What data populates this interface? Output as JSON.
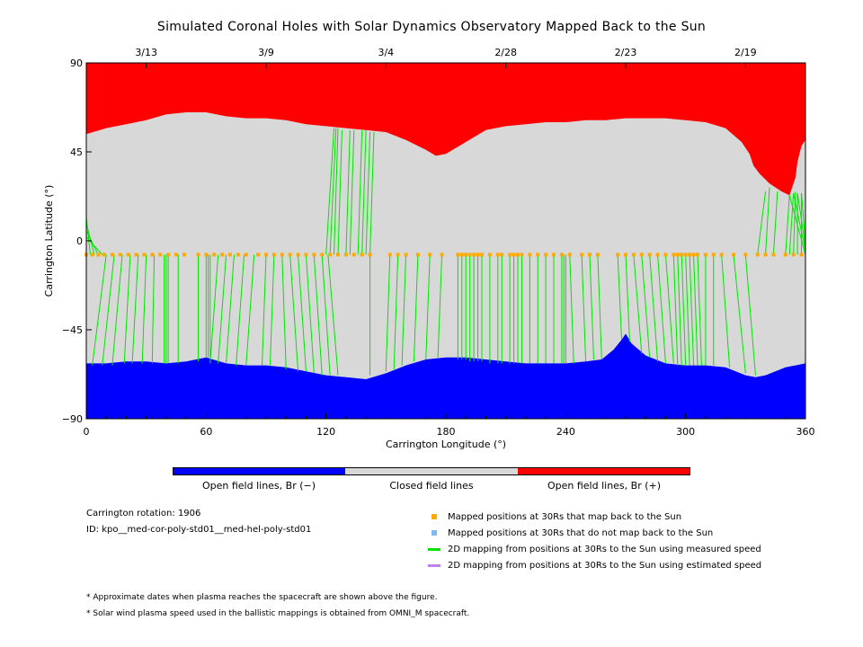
{
  "title": "Simulated Coronal Holes with Solar Dynamics Observatory Mapped Back to the Sun",
  "chart_data": {
    "type": "map",
    "xlabel": "Carrington Longitude (°)",
    "ylabel": "Carrington Latitude (°)",
    "xlim": [
      0,
      360
    ],
    "ylim": [
      -90,
      90
    ],
    "x_ticks": [
      "0",
      "60",
      "120",
      "180",
      "240",
      "300",
      "360"
    ],
    "y_ticks": [
      "90",
      "45",
      "0",
      "−45",
      "−90"
    ],
    "top_dates": [
      {
        "label": "3/13",
        "lon": 30
      },
      {
        "label": "3/9",
        "lon": 90
      },
      {
        "label": "3/4",
        "lon": 150
      },
      {
        "label": "2/28",
        "lon": 210
      },
      {
        "label": "2/23",
        "lon": 270
      },
      {
        "label": "2/19",
        "lon": 330
      }
    ],
    "north_boundary": [
      [
        0,
        54
      ],
      [
        10,
        57
      ],
      [
        20,
        59
      ],
      [
        30,
        61
      ],
      [
        40,
        64
      ],
      [
        50,
        65
      ],
      [
        60,
        65
      ],
      [
        70,
        63
      ],
      [
        80,
        62
      ],
      [
        90,
        62
      ],
      [
        100,
        61
      ],
      [
        110,
        59
      ],
      [
        120,
        58
      ],
      [
        130,
        57
      ],
      [
        140,
        56
      ],
      [
        150,
        55
      ],
      [
        160,
        51
      ],
      [
        170,
        46
      ],
      [
        175,
        43
      ],
      [
        180,
        44
      ],
      [
        190,
        50
      ],
      [
        200,
        56
      ],
      [
        210,
        58
      ],
      [
        220,
        59
      ],
      [
        230,
        60
      ],
      [
        240,
        60
      ],
      [
        250,
        61
      ],
      [
        260,
        61
      ],
      [
        270,
        62
      ],
      [
        280,
        62
      ],
      [
        290,
        62
      ],
      [
        300,
        61
      ],
      [
        310,
        60
      ],
      [
        320,
        57
      ],
      [
        328,
        50
      ],
      [
        332,
        44
      ],
      [
        334,
        38
      ],
      [
        337,
        34
      ],
      [
        342,
        29
      ],
      [
        348,
        25
      ],
      [
        352,
        23
      ],
      [
        355,
        32
      ],
      [
        356,
        40
      ],
      [
        358,
        48
      ],
      [
        360,
        51
      ]
    ],
    "south_boundary": [
      [
        0,
        -62
      ],
      [
        10,
        -62
      ],
      [
        20,
        -61
      ],
      [
        30,
        -61
      ],
      [
        40,
        -62
      ],
      [
        50,
        -61
      ],
      [
        55,
        -60
      ],
      [
        60,
        -59
      ],
      [
        70,
        -62
      ],
      [
        80,
        -63
      ],
      [
        90,
        -63
      ],
      [
        100,
        -64
      ],
      [
        110,
        -66
      ],
      [
        120,
        -68
      ],
      [
        130,
        -69
      ],
      [
        140,
        -70
      ],
      [
        150,
        -67
      ],
      [
        160,
        -63
      ],
      [
        170,
        -60
      ],
      [
        180,
        -59
      ],
      [
        190,
        -59
      ],
      [
        200,
        -60
      ],
      [
        210,
        -61
      ],
      [
        220,
        -62
      ],
      [
        230,
        -62
      ],
      [
        240,
        -62
      ],
      [
        250,
        -61
      ],
      [
        258,
        -60
      ],
      [
        264,
        -55
      ],
      [
        268,
        -50
      ],
      [
        270,
        -47
      ],
      [
        273,
        -52
      ],
      [
        280,
        -58
      ],
      [
        290,
        -62
      ],
      [
        300,
        -63
      ],
      [
        310,
        -63
      ],
      [
        320,
        -64
      ],
      [
        330,
        -68
      ],
      [
        335,
        -69
      ],
      [
        340,
        -68
      ],
      [
        350,
        -64
      ],
      [
        360,
        -62
      ]
    ],
    "mapped_latitude": -7,
    "mapped_points_lon": [
      0,
      3,
      6,
      9,
      13,
      17,
      21,
      25,
      29,
      33,
      37,
      41,
      45,
      49,
      56,
      60,
      64,
      68,
      72,
      76,
      80,
      86,
      90,
      94,
      98,
      102,
      106,
      110,
      114,
      118,
      122,
      126,
      130,
      134,
      138,
      142,
      152,
      156,
      160,
      166,
      172,
      178,
      186,
      188,
      190,
      192,
      194,
      196,
      198,
      202,
      206,
      208,
      212,
      214,
      216,
      218,
      222,
      226,
      230,
      234,
      238,
      242,
      248,
      252,
      256,
      266,
      270,
      274,
      278,
      282,
      286,
      290,
      294,
      296,
      298,
      300,
      302,
      304,
      306,
      310,
      314,
      318,
      324,
      330,
      336,
      340,
      344,
      350,
      354,
      358
    ],
    "mapping_lines": [
      [
        [
          0,
          -7
        ],
        [
          0,
          -63
        ]
      ],
      [
        [
          2,
          -7
        ],
        [
          0,
          12
        ]
      ],
      [
        [
          4,
          -7
        ],
        [
          0,
          9
        ]
      ],
      [
        [
          6,
          -7
        ],
        [
          0,
          5
        ]
      ],
      [
        [
          8,
          -7
        ],
        [
          0,
          2
        ]
      ],
      [
        [
          10,
          -7
        ],
        [
          3,
          -63
        ]
      ],
      [
        [
          14,
          -7
        ],
        [
          8,
          -63
        ]
      ],
      [
        [
          18,
          -7
        ],
        [
          13,
          -63
        ]
      ],
      [
        [
          22,
          -7
        ],
        [
          19,
          -62
        ]
      ],
      [
        [
          26,
          -7
        ],
        [
          23,
          -62
        ]
      ],
      [
        [
          30,
          -7
        ],
        [
          28,
          -62
        ]
      ],
      [
        [
          34,
          -7
        ],
        [
          33,
          -62
        ]
      ],
      [
        [
          39,
          -7
        ],
        [
          39,
          -62
        ]
      ],
      [
        [
          40,
          -7
        ],
        [
          40,
          -62
        ]
      ],
      [
        [
          41,
          -7
        ],
        [
          41,
          -62
        ]
      ],
      [
        [
          46,
          -7
        ],
        [
          46,
          -62
        ]
      ],
      [
        [
          56,
          -7
        ],
        [
          56,
          -61
        ]
      ],
      [
        [
          60,
          -7
        ],
        [
          60,
          -59
        ]
      ],
      [
        [
          61,
          -7
        ],
        [
          61,
          -59
        ]
      ],
      [
        [
          62,
          -7
        ],
        [
          62,
          -59
        ]
      ],
      [
        [
          66,
          -7
        ],
        [
          62,
          -62
        ]
      ],
      [
        [
          70,
          -7
        ],
        [
          66,
          -62
        ]
      ],
      [
        [
          74,
          -7
        ],
        [
          70,
          -62
        ]
      ],
      [
        [
          79,
          -7
        ],
        [
          75,
          -63
        ]
      ],
      [
        [
          84,
          -7
        ],
        [
          80,
          -63
        ]
      ],
      [
        [
          90,
          -7
        ],
        [
          88,
          -63
        ]
      ],
      [
        [
          94,
          -7
        ],
        [
          92,
          -63
        ]
      ],
      [
        [
          98,
          -7
        ],
        [
          100,
          -65
        ]
      ],
      [
        [
          102,
          -7
        ],
        [
          106,
          -66
        ]
      ],
      [
        [
          106,
          -7
        ],
        [
          110,
          -66
        ]
      ],
      [
        [
          110,
          -7
        ],
        [
          114,
          -67
        ]
      ],
      [
        [
          114,
          -7
        ],
        [
          118,
          -68
        ]
      ],
      [
        [
          118,
          -7
        ],
        [
          122,
          -68
        ]
      ],
      [
        [
          121,
          -7
        ],
        [
          126,
          -68
        ]
      ],
      [
        [
          120,
          -7
        ],
        [
          124,
          57
        ]
      ],
      [
        [
          122,
          -7
        ],
        [
          125,
          57
        ]
      ],
      [
        [
          124,
          -7
        ],
        [
          126,
          57
        ]
      ],
      [
        [
          126,
          -7
        ],
        [
          128,
          56
        ]
      ],
      [
        [
          130,
          -7
        ],
        [
          132,
          56
        ]
      ],
      [
        [
          132,
          -7
        ],
        [
          134,
          56
        ]
      ],
      [
        [
          136,
          -7
        ],
        [
          138,
          56
        ]
      ],
      [
        [
          138,
          -7
        ],
        [
          140,
          56
        ]
      ],
      [
        [
          140,
          -7
        ],
        [
          142,
          55
        ]
      ],
      [
        [
          142,
          -7
        ],
        [
          144,
          55
        ]
      ],
      [
        [
          142,
          -7
        ],
        [
          142,
          -68
        ]
      ],
      [
        [
          152,
          -7
        ],
        [
          150,
          -66
        ]
      ],
      [
        [
          156,
          -7
        ],
        [
          154,
          -65
        ]
      ],
      [
        [
          160,
          -7
        ],
        [
          158,
          -63
        ]
      ],
      [
        [
          166,
          -7
        ],
        [
          164,
          -61
        ]
      ],
      [
        [
          172,
          -7
        ],
        [
          170,
          -60
        ]
      ],
      [
        [
          178,
          -7
        ],
        [
          176,
          -59
        ]
      ],
      [
        [
          186,
          -7
        ],
        [
          186,
          -60
        ]
      ],
      [
        [
          188,
          -7
        ],
        [
          188,
          -60
        ]
      ],
      [
        [
          190,
          -7
        ],
        [
          190,
          -60
        ]
      ],
      [
        [
          192,
          -7
        ],
        [
          192,
          -61
        ]
      ],
      [
        [
          194,
          -7
        ],
        [
          194,
          -61
        ]
      ],
      [
        [
          196,
          -7
        ],
        [
          196,
          -61
        ]
      ],
      [
        [
          198,
          -7
        ],
        [
          198,
          -61
        ]
      ],
      [
        [
          202,
          -7
        ],
        [
          202,
          -62
        ]
      ],
      [
        [
          206,
          -7
        ],
        [
          206,
          -62
        ]
      ],
      [
        [
          208,
          -7
        ],
        [
          208,
          -62
        ]
      ],
      [
        [
          212,
          -7
        ],
        [
          212,
          -62
        ]
      ],
      [
        [
          214,
          -7
        ],
        [
          214,
          -62
        ]
      ],
      [
        [
          216,
          -7
        ],
        [
          216,
          -62
        ]
      ],
      [
        [
          218,
          -7
        ],
        [
          218,
          -62
        ]
      ],
      [
        [
          222,
          -7
        ],
        [
          222,
          -62
        ]
      ],
      [
        [
          226,
          -7
        ],
        [
          226,
          -62
        ]
      ],
      [
        [
          230,
          -7
        ],
        [
          230,
          -62
        ]
      ],
      [
        [
          234,
          -7
        ],
        [
          234,
          -62
        ]
      ],
      [
        [
          238,
          -7
        ],
        [
          238,
          -62
        ]
      ],
      [
        [
          239,
          -7
        ],
        [
          239,
          -62
        ]
      ],
      [
        [
          240,
          -7
        ],
        [
          240,
          -62
        ]
      ],
      [
        [
          242,
          -7
        ],
        [
          244,
          -62
        ]
      ],
      [
        [
          248,
          -7
        ],
        [
          250,
          -61
        ]
      ],
      [
        [
          252,
          -7
        ],
        [
          254,
          -60
        ]
      ],
      [
        [
          256,
          -7
        ],
        [
          258,
          -60
        ]
      ],
      [
        [
          266,
          -7
        ],
        [
          268,
          -50
        ]
      ],
      [
        [
          270,
          -7
        ],
        [
          272,
          -51
        ]
      ],
      [
        [
          274,
          -7
        ],
        [
          278,
          -57
        ]
      ],
      [
        [
          278,
          -7
        ],
        [
          282,
          -59
        ]
      ],
      [
        [
          282,
          -7
        ],
        [
          286,
          -61
        ]
      ],
      [
        [
          286,
          -7
        ],
        [
          290,
          -62
        ]
      ],
      [
        [
          290,
          -7
        ],
        [
          294,
          -62
        ]
      ],
      [
        [
          294,
          -7
        ],
        [
          296,
          -63
        ]
      ],
      [
        [
          296,
          -7
        ],
        [
          298,
          -63
        ]
      ],
      [
        [
          298,
          -7
        ],
        [
          300,
          -63
        ]
      ],
      [
        [
          300,
          -7
        ],
        [
          302,
          -63
        ]
      ],
      [
        [
          302,
          -7
        ],
        [
          304,
          -63
        ]
      ],
      [
        [
          304,
          -7
        ],
        [
          306,
          -63
        ]
      ],
      [
        [
          306,
          -7
        ],
        [
          308,
          -63
        ]
      ],
      [
        [
          310,
          -7
        ],
        [
          310,
          -63
        ]
      ],
      [
        [
          314,
          -7
        ],
        [
          314,
          -63
        ]
      ],
      [
        [
          318,
          -7
        ],
        [
          322,
          -64
        ]
      ],
      [
        [
          324,
          -7
        ],
        [
          330,
          -67
        ]
      ],
      [
        [
          330,
          -7
        ],
        [
          335,
          -68
        ]
      ],
      [
        [
          336,
          -7
        ],
        [
          340,
          25
        ]
      ],
      [
        [
          340,
          -7
        ],
        [
          342,
          27
        ]
      ],
      [
        [
          344,
          -7
        ],
        [
          346,
          25
        ]
      ],
      [
        [
          350,
          -7
        ],
        [
          352,
          23
        ]
      ],
      [
        [
          352,
          -7
        ],
        [
          354,
          24
        ]
      ],
      [
        [
          354,
          -7
        ],
        [
          355,
          25
        ]
      ],
      [
        [
          356,
          -7
        ],
        [
          356,
          24
        ]
      ],
      [
        [
          358,
          -7
        ],
        [
          358,
          24
        ]
      ],
      [
        [
          360,
          -7
        ],
        [
          352,
          23
        ]
      ],
      [
        [
          360,
          -5
        ],
        [
          354,
          24
        ]
      ],
      [
        [
          360,
          -3
        ],
        [
          356,
          24
        ]
      ],
      [
        [
          360,
          -1
        ],
        [
          358,
          24
        ]
      ]
    ],
    "colors": {
      "open_negative": "#0000ff",
      "closed": "#d8d8d8",
      "open_positive": "#ff0000",
      "mapped_back": "#ffaa00",
      "not_mapped_back": "#80b8f0",
      "measured_speed": "#00e400",
      "estimated_speed": "#c080f0"
    },
    "colorbar": [
      {
        "label": "Open field lines, Br (−)",
        "color": "#0000ff"
      },
      {
        "label": "Closed field lines",
        "color": "#d8d8d8"
      },
      {
        "label": "Open field lines, Br (+)",
        "color": "#ff0000"
      }
    ]
  },
  "info": {
    "rotation": "Carrington rotation: 1906",
    "id": "ID: kpo__med-cor-poly-std01__med-hel-poly-std01"
  },
  "legend": [
    {
      "label": "Mapped positions at 30Rs that map back to the Sun",
      "kind": "square",
      "color": "#ffaa00"
    },
    {
      "label": "Mapped positions at 30Rs that do not map back to the Sun",
      "kind": "square",
      "color": "#80b8f0"
    },
    {
      "label": "2D mapping from positions at 30Rs to the Sun using measured speed",
      "kind": "line",
      "color": "#00e400"
    },
    {
      "label": "2D mapping from positions at 30Rs to the Sun using estimated speed",
      "kind": "line",
      "color": "#c080f0"
    }
  ],
  "notes": [
    "* Approximate dates when plasma reaches the spacecraft are shown above the figure.",
    "* Solar wind plasma speed used in the ballistic mappings is obtained from OMNI_M spacecraft."
  ]
}
